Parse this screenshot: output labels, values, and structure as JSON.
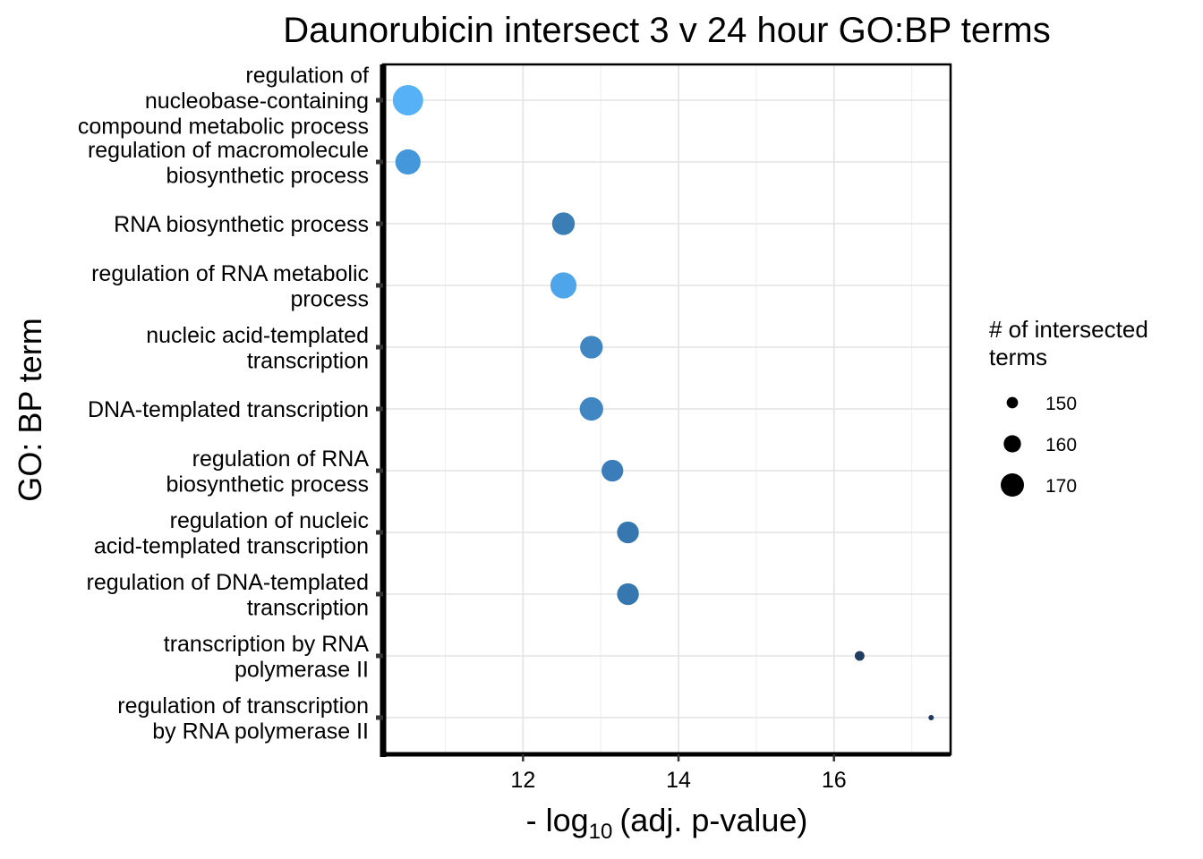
{
  "chart_data": {
    "type": "scatter",
    "title": "Daunorubicin intersect 3 v 24 hour GO:BP terms",
    "xlabel": {
      "prefix": "- log",
      "subscript": "10",
      "suffix": "(adj. p-value)"
    },
    "ylabel": "GO: BP term",
    "xlim": [
      10.2,
      17.5
    ],
    "x_ticks": [
      "12",
      "14",
      "16"
    ],
    "x_tick_values": [
      12,
      14,
      16
    ],
    "grid": true,
    "legend": {
      "title_lines": [
        "# of intersected",
        " terms"
      ],
      "position": "right",
      "size_entries": [
        {
          "label": "150",
          "value": 150
        },
        {
          "label": "160",
          "value": 160
        },
        {
          "label": "170",
          "value": 170
        }
      ]
    },
    "points": [
      {
        "label_lines": [
          "regulation of",
          "nucleobase-containing",
          "compound metabolic process"
        ],
        "x": 10.52,
        "size": 173,
        "color": "#56B1F7"
      },
      {
        "label_lines": [
          "regulation of macromolecule",
          "biosynthetic process"
        ],
        "x": 10.52,
        "size": 167,
        "color": "#4597DC"
      },
      {
        "label_lines": [
          "RNA biosynthetic process"
        ],
        "x": 12.52,
        "size": 164,
        "color": "#3B7EB6"
      },
      {
        "label_lines": [
          "regulation of RNA metabolic",
          "process"
        ],
        "x": 12.52,
        "size": 168,
        "color": "#4EA5E9"
      },
      {
        "label_lines": [
          "nucleic acid-templated",
          "transcription"
        ],
        "x": 12.88,
        "size": 164,
        "color": "#3F86C2"
      },
      {
        "label_lines": [
          "DNA-templated transcription"
        ],
        "x": 12.88,
        "size": 165,
        "color": "#3F86C2"
      },
      {
        "label_lines": [
          "regulation of RNA",
          "biosynthetic process"
        ],
        "x": 13.15,
        "size": 163,
        "color": "#3A7DBA"
      },
      {
        "label_lines": [
          "regulation of nucleic",
          "acid-templated transcription"
        ],
        "x": 13.35,
        "size": 163,
        "color": "#3777B0"
      },
      {
        "label_lines": [
          "regulation of DNA-templated",
          "transcription"
        ],
        "x": 13.35,
        "size": 163,
        "color": "#3777B0"
      },
      {
        "label_lines": [
          "transcription by RNA",
          "polymerase II"
        ],
        "x": 16.33,
        "size": 149,
        "color": "#1F3D5E"
      },
      {
        "label_lines": [
          "regulation of transcription",
          "by RNA polymerase II"
        ],
        "x": 17.25,
        "size": 144,
        "color": "#1C3A5A"
      }
    ]
  }
}
